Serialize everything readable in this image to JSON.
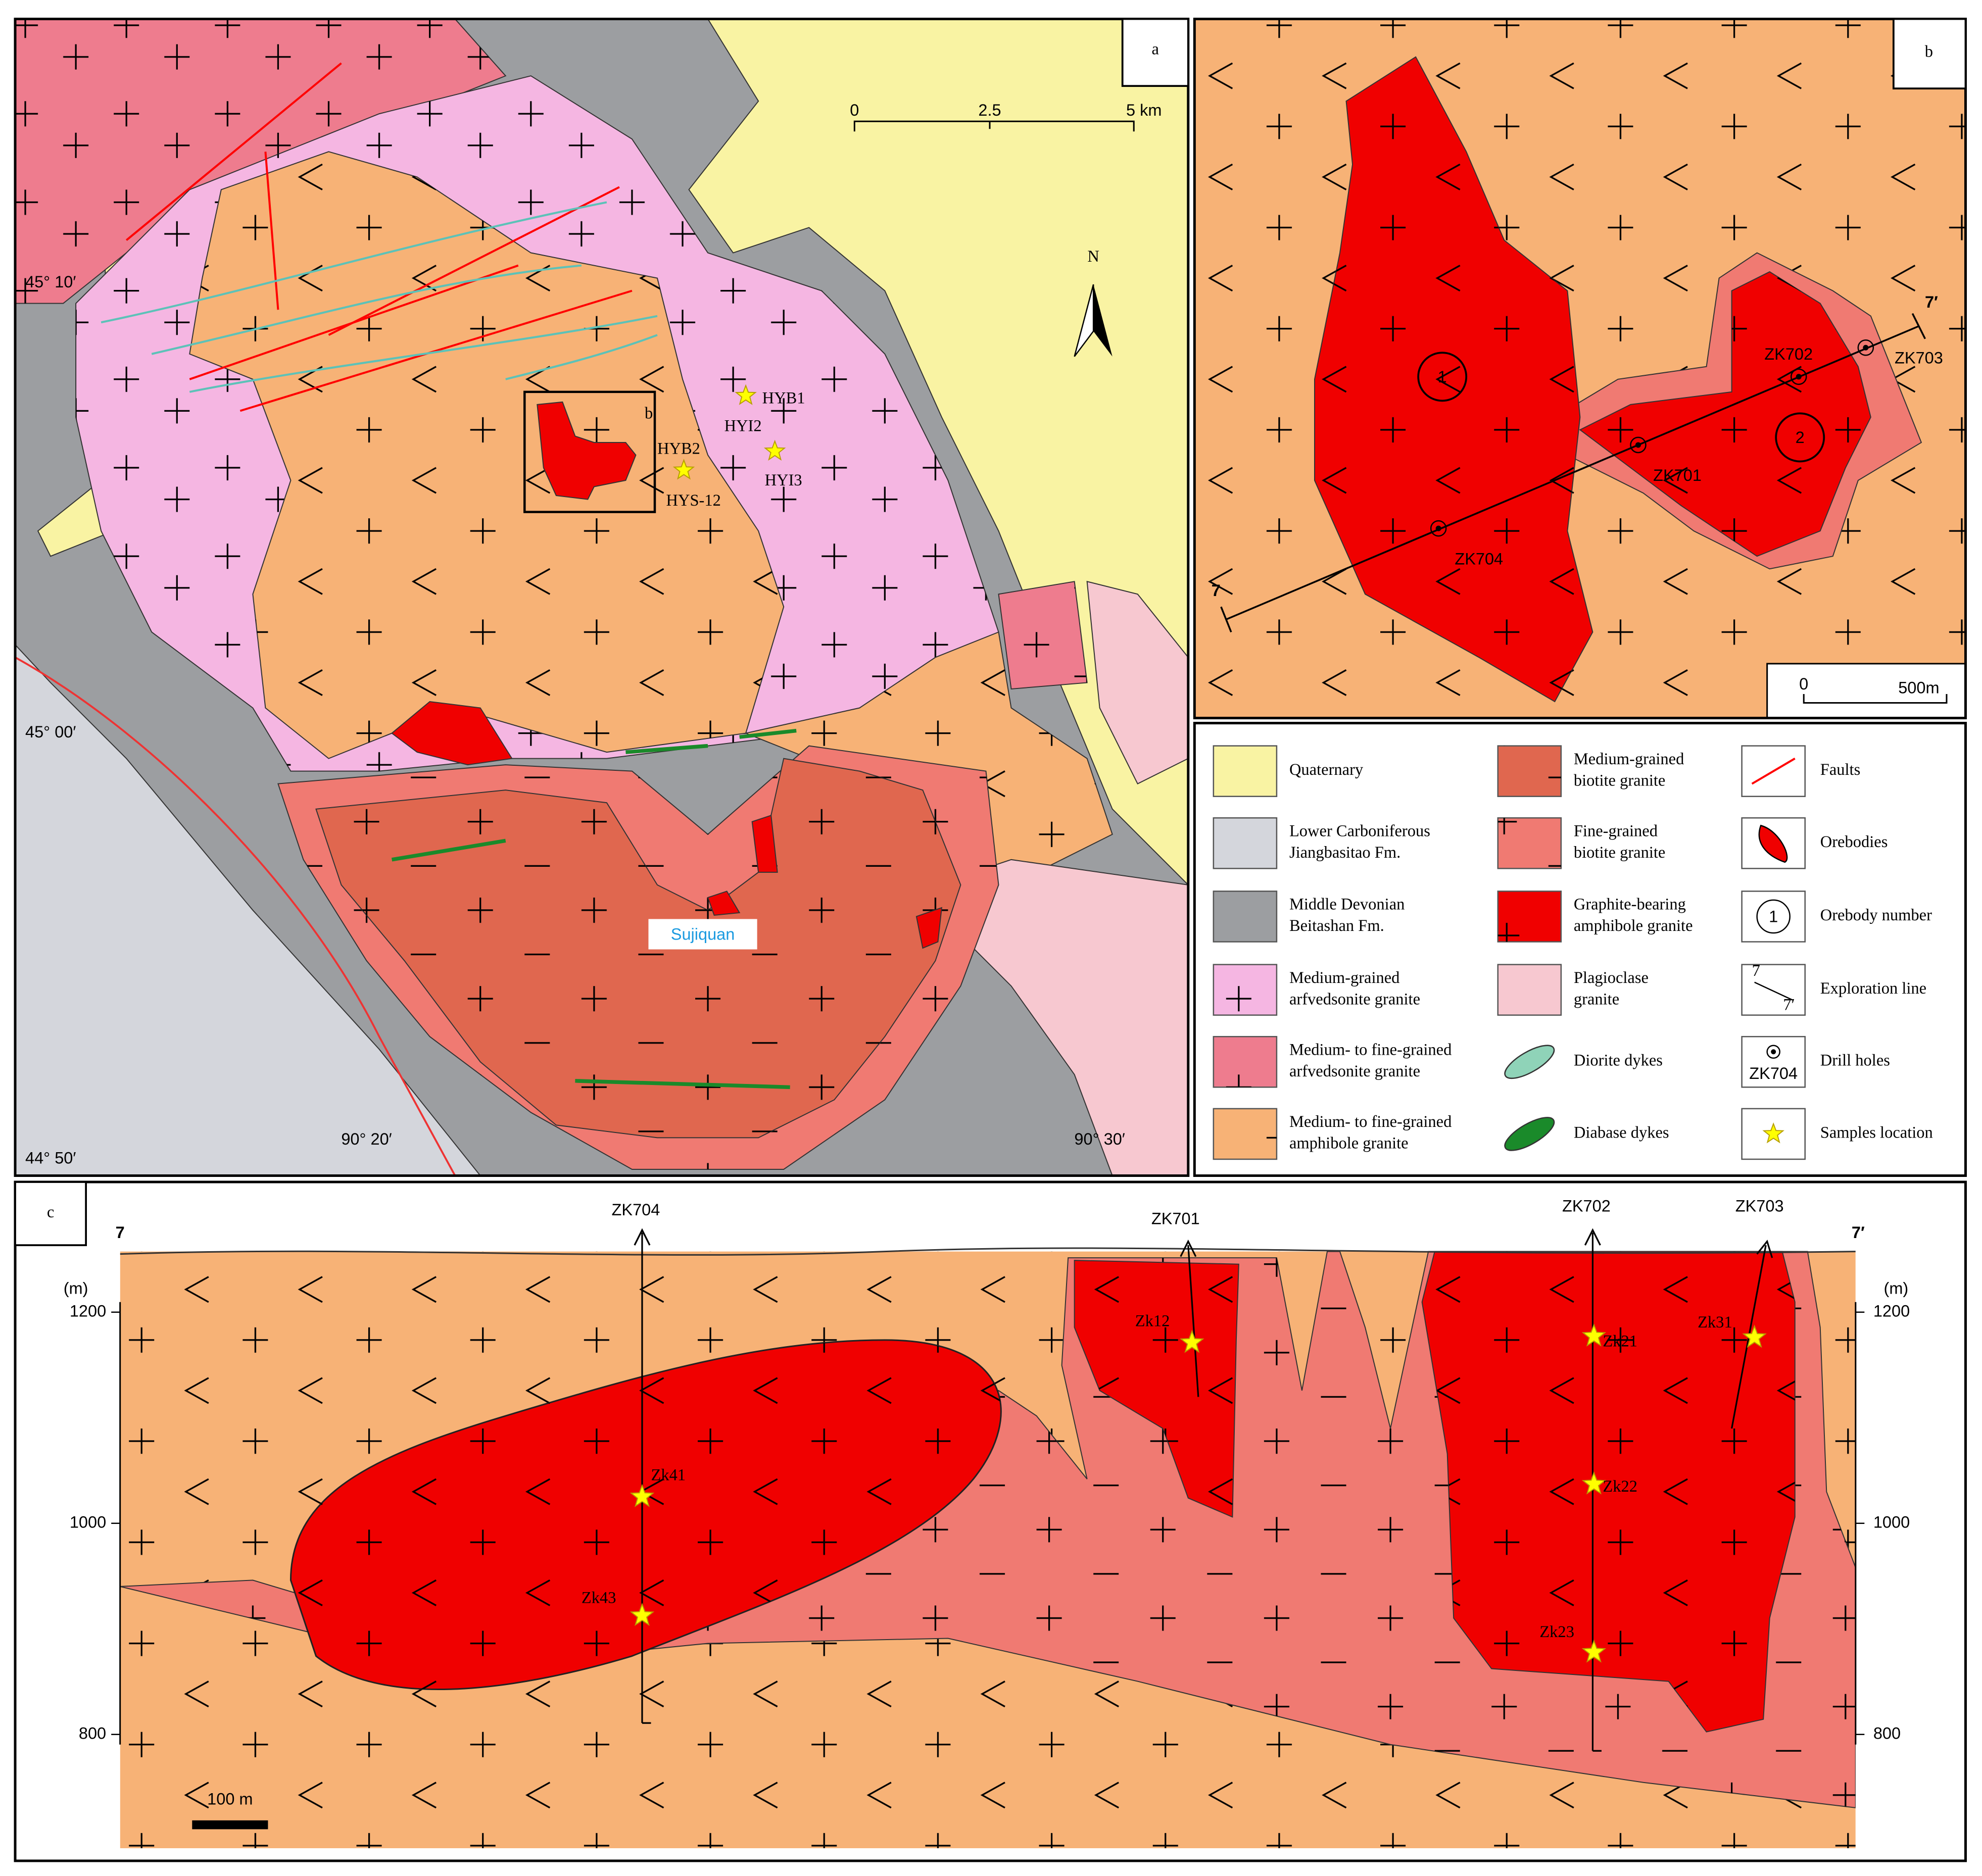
{
  "panel_a": {
    "label": "a",
    "scale_bar": [
      "0",
      "2.5",
      "5 km"
    ],
    "north": "N",
    "latitudes": [
      "45° 10′",
      "45° 00′",
      "44° 50′"
    ],
    "longitudes": [
      "90° 20′",
      "90° 30′"
    ],
    "samples": [
      "HYB1",
      "HYI2",
      "HYB2",
      "HYI3",
      "HYS-12"
    ],
    "place": "Sujiquan",
    "inset_label": "b"
  },
  "panel_b": {
    "label": "b",
    "drill_holes": [
      "ZK702",
      "ZK703",
      "ZK701",
      "ZK704"
    ],
    "orebodies": [
      "1",
      "2"
    ],
    "line_ends": [
      "7",
      "7′"
    ],
    "scale_bar": [
      "0",
      "500m"
    ]
  },
  "legend": {
    "items": [
      {
        "lines": [
          "Quaternary"
        ]
      },
      {
        "lines": [
          "Lower Carboniferous",
          "Jiangbasitao Fm."
        ]
      },
      {
        "lines": [
          "Middle Devonian",
          "Beitashan Fm."
        ]
      },
      {
        "lines": [
          "Medium-grained",
          "arfvedsonite granite"
        ]
      },
      {
        "lines": [
          "Medium- to fine-grained",
          "arfvedsonite granite"
        ]
      },
      {
        "lines": [
          "Medium- to fine-grained",
          "amphibole granite"
        ]
      },
      {
        "lines": [
          "Medium-grained",
          "biotite granite"
        ]
      },
      {
        "lines": [
          "Fine-grained",
          "biotite granite"
        ]
      },
      {
        "lines": [
          "Graphite-bearing",
          "amphibole granite"
        ]
      },
      {
        "lines": [
          "Plagioclase",
          "granite"
        ]
      },
      {
        "lines": [
          "Diorite dykes"
        ]
      },
      {
        "lines": [
          "Diabase dykes"
        ]
      },
      {
        "lines": [
          "Faults"
        ]
      },
      {
        "lines": [
          "Orebodies"
        ]
      },
      {
        "lines": [
          "Orebody number"
        ]
      },
      {
        "lines": [
          "Exploration line"
        ]
      },
      {
        "lines": [
          "Drill holes"
        ]
      },
      {
        "lines": [
          "Samples location"
        ]
      }
    ],
    "orebody_number": "1",
    "exploration_line": [
      "7",
      "7′"
    ],
    "drill_hole": "ZK704"
  },
  "panel_c": {
    "label": "c",
    "drill_holes": [
      "ZK704",
      "ZK701",
      "ZK702",
      "ZK703"
    ],
    "line_ends": [
      "7",
      "7′"
    ],
    "unit": "(m)",
    "elevations": [
      "1200",
      "1000",
      "800"
    ],
    "samples": [
      "Zk41",
      "Zk43",
      "Zk12",
      "Zk21",
      "Zk22",
      "Zk23",
      "Zk31"
    ],
    "scale_bar": "100 m"
  }
}
